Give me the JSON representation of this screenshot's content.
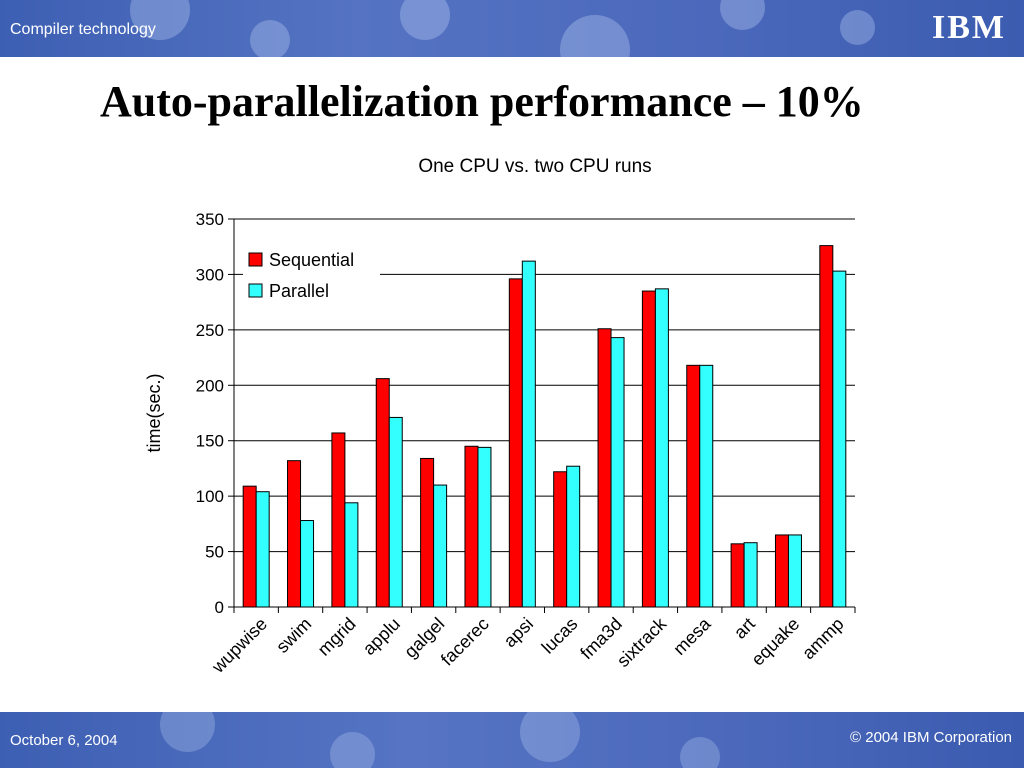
{
  "header": {
    "section_label": "Compiler technology",
    "logo_text": "IBM"
  },
  "slide": {
    "title": "Auto-parallelization performance – 10%"
  },
  "footer": {
    "date": "October 6, 2004",
    "copyright": "© 2004 IBM Corporation"
  },
  "colors": {
    "banner": "#4b68bb",
    "sequential": "#ff0000",
    "parallel": "#33ffff"
  },
  "chart_data": {
    "type": "bar",
    "title": "One CPU vs. two CPU runs",
    "xlabel": "",
    "ylabel": "time(sec.)",
    "ylim": [
      0,
      350
    ],
    "yticks": [
      0,
      50,
      100,
      150,
      200,
      250,
      300,
      350
    ],
    "grid": true,
    "legend": "top-left",
    "categories": [
      "wupwise",
      "swim",
      "mgrid",
      "applu",
      "galgel",
      "facerec",
      "apsi",
      "lucas",
      "fma3d",
      "sixtrack",
      "mesa",
      "art",
      "equake",
      "ammp"
    ],
    "series": [
      {
        "name": "Sequential",
        "color": "#ff0000",
        "values": [
          109,
          132,
          157,
          206,
          134,
          145,
          296,
          122,
          251,
          285,
          218,
          57,
          65,
          326
        ]
      },
      {
        "name": "Parallel",
        "color": "#33ffff",
        "values": [
          104,
          78,
          94,
          171,
          110,
          144,
          312,
          127,
          243,
          287,
          218,
          58,
          65,
          303
        ]
      }
    ]
  }
}
